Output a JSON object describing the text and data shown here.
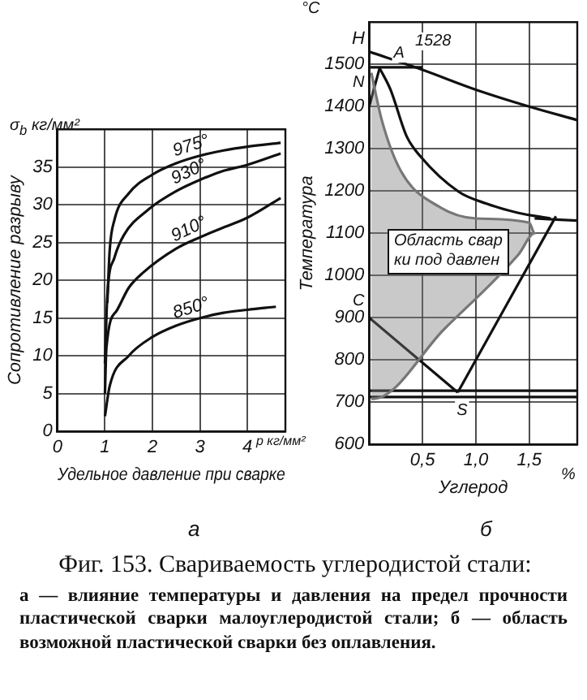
{
  "chart_data": [
    {
      "type": "line",
      "xlabel": "Удельное давление при сварке",
      "ylabel": "Сопротивление разрыву",
      "xlim": [
        0,
        4.8
      ],
      "ylim": [
        0,
        40
      ],
      "xticks": [
        0,
        1,
        2,
        3,
        4
      ],
      "yticks": [
        0,
        5,
        10,
        15,
        20,
        25,
        30,
        35
      ],
      "grid": true,
      "legend": false,
      "marker": "none",
      "annotations": [
        "σ$_{b}$ кг/мм²",
        "p кг/мм²",
        "а"
      ],
      "series": [
        {
          "name": "975°",
          "color": "#111111",
          "x": [
            1.05,
            1.1,
            1.2,
            1.5,
            2,
            2.5,
            3,
            3.5,
            4,
            4.7
          ],
          "values": [
            17,
            24,
            28,
            31.5,
            34,
            35.5,
            36.5,
            37.2,
            37.7,
            38.2
          ]
        },
        {
          "name": "930°",
          "color": "#111111",
          "x": [
            1,
            1.05,
            1.2,
            1.4,
            1.9,
            2.5,
            3,
            3.5,
            4,
            4.7
          ],
          "values": [
            9,
            18,
            23,
            26,
            29.3,
            31.8,
            33.3,
            34.5,
            35.3,
            36.8
          ]
        },
        {
          "name": "910°",
          "color": "#111111",
          "x": [
            1,
            1.03,
            1.25,
            1.5,
            1.8,
            2.5,
            3,
            3.5,
            4,
            4.7
          ],
          "values": [
            5,
            11,
            16,
            19,
            21,
            24.2,
            25.7,
            27,
            28.3,
            30.9
          ]
        },
        {
          "name": "850°",
          "color": "#111111",
          "x": [
            1,
            1.1,
            1.5,
            2,
            2.5,
            3,
            3.5,
            4,
            4.6
          ],
          "values": [
            2,
            6,
            10,
            12.5,
            14,
            15,
            15.7,
            16.1,
            16.5
          ]
        }
      ]
    },
    {
      "type": "line",
      "xlabel": "Углерод",
      "ylabel": "Температура",
      "xlim": [
        0,
        1.95
      ],
      "ylim": [
        600,
        1600
      ],
      "xticks": [
        {
          "value": 0.5,
          "label": "0,5"
        },
        {
          "value": 1,
          "label": "1,0"
        },
        {
          "value": 1.5,
          "label": "1,5"
        }
      ],
      "yticks": [
        600,
        700,
        800,
        900,
        1000,
        1100,
        1200,
        1300,
        1400,
        1500
      ],
      "grid": true,
      "legend": false,
      "marker": "none",
      "annotations": [
        "°C",
        "%",
        "б",
        "Фиг. 153. Свариваемость углеродистой стали:",
        "а — влияние температуры и давления на предел прочности пластической сварки малоуглеродистой стали; б — область возможной пластической сварки без оплавления.",
        "H",
        "1528",
        "Область свар\nки под давлен",
        {
          "text": "N",
          "x": 0,
          "y": 1458
        },
        {
          "text": "A",
          "x": 0.28,
          "y": 1527
        },
        {
          "text": "C",
          "x": 0,
          "y": 940
        },
        {
          "text": "S",
          "x": 0.87,
          "y": 680
        }
      ],
      "series": [
        {
          "type": "area",
          "color": "#777777",
          "x": [
            0.02,
            0.12,
            0.3,
            0.66,
            1,
            1.5,
            1.55,
            1.4,
            0.7,
            0.04,
            0.02
          ],
          "values": [
            1480,
            1366,
            1246,
            1162,
            1135,
            1125,
            1100,
            1050,
            872,
            708,
            708
          ]
        },
        {
          "color": "#111111",
          "x": [
            0,
            0.5,
            1,
            1.5,
            1.95
          ],
          "values": [
            1530,
            1487,
            1440,
            1400,
            1368
          ]
        },
        {
          "color": "#111111",
          "x": [
            0.1,
            0.2,
            0.35,
            0.48,
            0.84,
            1.1,
            1.4,
            1.7
          ],
          "values": [
            1490,
            1440,
            1330,
            1282,
            1198,
            1170,
            1148,
            1135
          ]
        },
        {
          "color": "#111111",
          "x": [
            1.55,
            1.95
          ],
          "values": [
            1135,
            1130
          ]
        },
        {
          "color": "#111111",
          "x": [
            0,
            0.83
          ],
          "values": [
            900,
            723
          ]
        },
        {
          "color": "#111111",
          "x": [
            0.83,
            1.75
          ],
          "values": [
            723,
            1140
          ]
        },
        {
          "color": "#111111",
          "x": [
            0,
            1.95
          ],
          "values": [
            727,
            727
          ]
        },
        {
          "color": "#111111",
          "x": [
            0,
            1.95
          ],
          "values": [
            712,
            712
          ]
        },
        {
          "color": "#111111",
          "x": [
            0,
            0.1
          ],
          "values": [
            1400,
            1493
          ]
        },
        {
          "color": "#111111",
          "x": [
            0,
            0.5
          ],
          "values": [
            1493,
            1493
          ]
        }
      ]
    }
  ]
}
